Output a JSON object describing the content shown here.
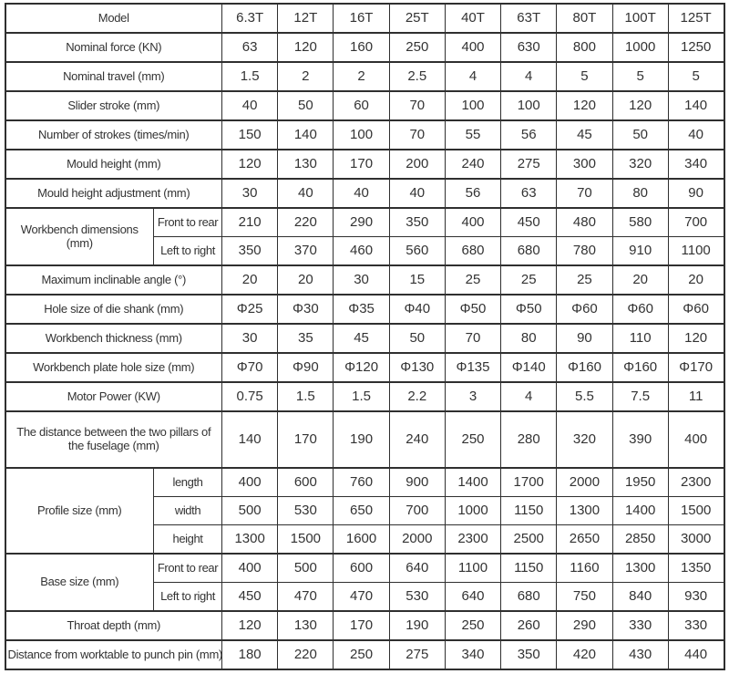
{
  "styles": {
    "border_color": "#2f2f2f",
    "text_color": "#333333",
    "background": "#ffffff"
  },
  "chart_data": {
    "type": "table",
    "header": {
      "label": "Model",
      "models": [
        "6.3T",
        "12T",
        "16T",
        "25T",
        "40T",
        "63T",
        "80T",
        "100T",
        "125T"
      ]
    },
    "rows": [
      {
        "label": "Nominal force (KN)",
        "values": [
          "63",
          "120",
          "160",
          "250",
          "400",
          "630",
          "800",
          "1000",
          "1250"
        ]
      },
      {
        "label": "Nominal travel (mm)",
        "values": [
          "1.5",
          "2",
          "2",
          "2.5",
          "4",
          "4",
          "5",
          "5",
          "5"
        ]
      },
      {
        "label": "Slider stroke (mm)",
        "values": [
          "40",
          "50",
          "60",
          "70",
          "100",
          "100",
          "120",
          "120",
          "140"
        ]
      },
      {
        "label": "Number of strokes (times/min)",
        "values": [
          "150",
          "140",
          "100",
          "70",
          "55",
          "56",
          "45",
          "50",
          "40"
        ]
      },
      {
        "label": "Mould height (mm)",
        "values": [
          "120",
          "130",
          "170",
          "200",
          "240",
          "275",
          "300",
          "320",
          "340"
        ]
      },
      {
        "label": "Mould height adjustment (mm)",
        "values": [
          "30",
          "40",
          "40",
          "40",
          "56",
          "63",
          "70",
          "80",
          "90"
        ]
      },
      {
        "label": "Workbench dimensions (mm)",
        "subrows": [
          {
            "label": "Front to rear",
            "values": [
              "210",
              "220",
              "290",
              "350",
              "400",
              "450",
              "480",
              "580",
              "700"
            ]
          },
          {
            "label": "Left to right",
            "values": [
              "350",
              "370",
              "460",
              "560",
              "680",
              "680",
              "780",
              "910",
              "1100"
            ]
          }
        ]
      },
      {
        "label": "Maximum inclinable angle (°)",
        "values": [
          "20",
          "20",
          "30",
          "15",
          "25",
          "25",
          "25",
          "20",
          "20"
        ]
      },
      {
        "label": "Hole size of die shank (mm)",
        "values": [
          "Φ25",
          "Φ30",
          "Φ35",
          "Φ40",
          "Φ50",
          "Φ50",
          "Φ60",
          "Φ60",
          "Φ60"
        ]
      },
      {
        "label": "Workbench thickness (mm)",
        "values": [
          "30",
          "35",
          "45",
          "50",
          "70",
          "80",
          "90",
          "110",
          "120"
        ]
      },
      {
        "label": "Workbench plate hole size (mm)",
        "values": [
          "Φ70",
          "Φ90",
          "Φ120",
          "Φ130",
          "Φ135",
          "Φ140",
          "Φ160",
          "Φ160",
          "Φ170"
        ]
      },
      {
        "label": "Motor Power (KW)",
        "values": [
          "0.75",
          "1.5",
          "1.5",
          "2.2",
          "3",
          "4",
          "5.5",
          "7.5",
          "11"
        ]
      },
      {
        "label": "The distance between the two pillars of the fuselage (mm)",
        "tall": true,
        "values": [
          "140",
          "170",
          "190",
          "240",
          "250",
          "280",
          "320",
          "390",
          "400"
        ]
      },
      {
        "label": "Profile size (mm)",
        "subrows": [
          {
            "label": "length",
            "values": [
              "400",
              "600",
              "760",
              "900",
              "1400",
              "1700",
              "2000",
              "1950",
              "2300"
            ]
          },
          {
            "label": "width",
            "values": [
              "500",
              "530",
              "650",
              "700",
              "1000",
              "1150",
              "1300",
              "1400",
              "1500"
            ]
          },
          {
            "label": "height",
            "values": [
              "1300",
              "1500",
              "1600",
              "2000",
              "2300",
              "2500",
              "2650",
              "2850",
              "3000"
            ]
          }
        ]
      },
      {
        "label": "Base size (mm)",
        "subrows": [
          {
            "label": "Front to rear",
            "values": [
              "400",
              "500",
              "600",
              "640",
              "1100",
              "1150",
              "1160",
              "1300",
              "1350"
            ]
          },
          {
            "label": "Left to right",
            "values": [
              "450",
              "470",
              "470",
              "530",
              "640",
              "680",
              "750",
              "840",
              "930"
            ]
          }
        ]
      },
      {
        "label": "Throat depth (mm)",
        "values": [
          "120",
          "130",
          "170",
          "190",
          "250",
          "260",
          "290",
          "330",
          "330"
        ]
      },
      {
        "label": "Distance from worktable to punch pin (mm)",
        "values": [
          "180",
          "220",
          "250",
          "275",
          "340",
          "350",
          "420",
          "430",
          "440"
        ]
      }
    ]
  }
}
